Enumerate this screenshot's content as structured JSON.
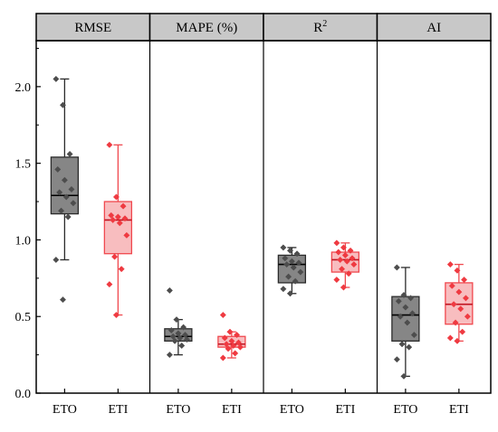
{
  "chart_data": {
    "type": "boxplot",
    "ylim": [
      0.0,
      2.3
    ],
    "y_ticks": [
      "0.0",
      "0.5",
      "1.0",
      "1.5",
      "2.0"
    ],
    "grid": false,
    "categories": [
      "ETO",
      "ETI"
    ],
    "colors": {
      "ETO": {
        "fill": "#7f7f7f",
        "stroke": "#2b2b2b",
        "point": "#4d4d4d"
      },
      "ETI": {
        "fill": "#f7b6b8",
        "stroke": "#f0484e",
        "point": "#ef3a41"
      },
      "header": "#c8c8c8"
    },
    "panels": [
      {
        "title": "RMSE",
        "boxes": [
          {
            "group": "ETO",
            "min": 0.87,
            "q1": 1.17,
            "median": 1.29,
            "q3": 1.54,
            "max": 2.05,
            "points": [
              2.05,
              1.88,
              1.56,
              1.46,
              1.39,
              1.33,
              1.31,
              1.28,
              1.24,
              1.19,
              1.15,
              0.87,
              0.61
            ]
          },
          {
            "group": "ETI",
            "min": 0.51,
            "q1": 0.91,
            "median": 1.13,
            "q3": 1.25,
            "max": 1.62,
            "points": [
              1.62,
              1.28,
              1.22,
              1.16,
              1.15,
              1.14,
              1.13,
              1.11,
              1.03,
              0.89,
              0.81,
              0.71,
              0.51
            ]
          }
        ]
      },
      {
        "title": "MAPE (%)",
        "boxes": [
          {
            "group": "ETO",
            "min": 0.25,
            "q1": 0.34,
            "median": 0.37,
            "q3": 0.42,
            "max": 0.48,
            "points": [
              0.67,
              0.48,
              0.43,
              0.41,
              0.39,
              0.38,
              0.37,
              0.36,
              0.35,
              0.34,
              0.31,
              0.25
            ]
          },
          {
            "group": "ETI",
            "min": 0.23,
            "q1": 0.3,
            "median": 0.32,
            "q3": 0.37,
            "max": 0.4,
            "points": [
              0.51,
              0.4,
              0.38,
              0.36,
              0.34,
              0.33,
              0.32,
              0.31,
              0.3,
              0.29,
              0.26,
              0.23
            ]
          }
        ]
      },
      {
        "title": "R",
        "title_sup": "2",
        "boxes": [
          {
            "group": "ETO",
            "min": 0.65,
            "q1": 0.72,
            "median": 0.84,
            "q3": 0.9,
            "max": 0.95,
            "points": [
              0.95,
              0.93,
              0.91,
              0.88,
              0.86,
              0.85,
              0.84,
              0.82,
              0.79,
              0.76,
              0.73,
              0.68,
              0.65
            ]
          },
          {
            "group": "ETI",
            "min": 0.69,
            "q1": 0.79,
            "median": 0.87,
            "q3": 0.92,
            "max": 0.98,
            "points": [
              0.98,
              0.95,
              0.93,
              0.92,
              0.9,
              0.88,
              0.87,
              0.86,
              0.84,
              0.81,
              0.78,
              0.74,
              0.69
            ]
          }
        ]
      },
      {
        "title": "AI",
        "boxes": [
          {
            "group": "ETO",
            "min": 0.11,
            "q1": 0.34,
            "median": 0.51,
            "q3": 0.63,
            "max": 0.82,
            "points": [
              0.82,
              0.64,
              0.62,
              0.6,
              0.56,
              0.52,
              0.5,
              0.46,
              0.38,
              0.32,
              0.3,
              0.22,
              0.11
            ]
          },
          {
            "group": "ETI",
            "min": 0.34,
            "q1": 0.45,
            "median": 0.58,
            "q3": 0.72,
            "max": 0.84,
            "points": [
              0.84,
              0.8,
              0.74,
              0.7,
              0.66,
              0.62,
              0.58,
              0.55,
              0.5,
              0.46,
              0.4,
              0.36,
              0.34
            ]
          }
        ]
      }
    ]
  }
}
